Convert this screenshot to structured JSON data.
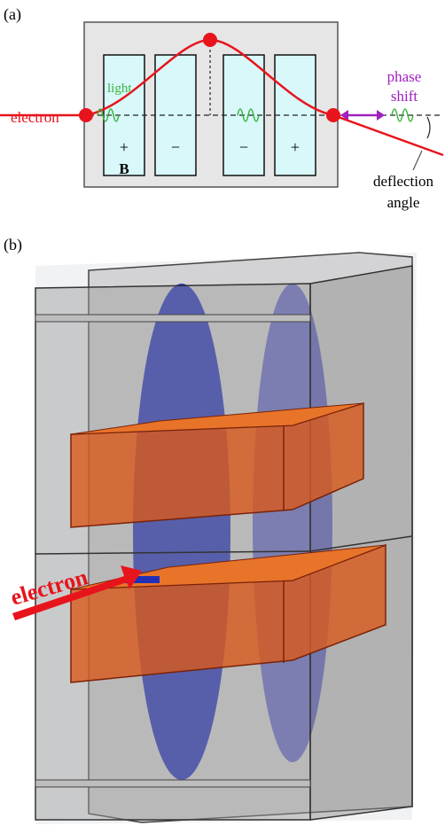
{
  "panel_a": {
    "label": "(a)",
    "electron": "electron",
    "light": "light",
    "signs": [
      "+",
      "−",
      "−",
      "+"
    ],
    "field": "B",
    "phase_shift": [
      "phase",
      "shift"
    ],
    "deflection": [
      "deflection",
      "angle"
    ]
  },
  "panel_b": {
    "label": "(b)",
    "electron": "electron"
  }
}
